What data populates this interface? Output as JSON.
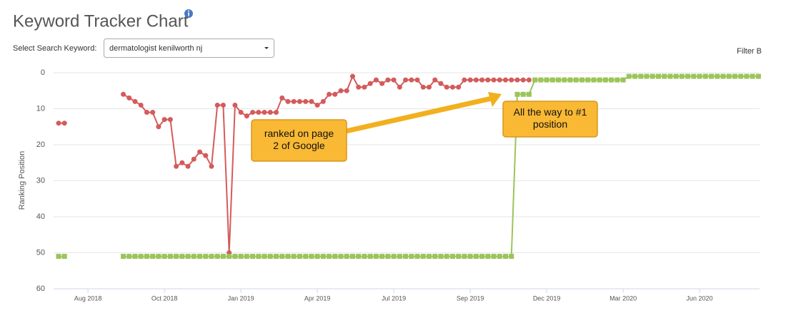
{
  "header": {
    "title": "Keyword Tracker Chart"
  },
  "controls": {
    "select_label": "Select Search Keyword:",
    "select_value": "dermatologist kenilworth nj",
    "filter": "Filter B"
  },
  "chart_data": {
    "type": "line",
    "y_label": "Ranking Position",
    "ylim": [
      0,
      60
    ],
    "yticks": [
      0,
      10,
      20,
      30,
      40,
      50,
      60
    ],
    "y_reversed": true,
    "grid": true,
    "categories": [
      null,
      null,
      null,
      null,
      null,
      "Aug 2018",
      null,
      null,
      null,
      null,
      null,
      null,
      null,
      null,
      null,
      null,
      null,
      null,
      "Oct 2018",
      null,
      null,
      null,
      null,
      null,
      null,
      null,
      null,
      null,
      null,
      null,
      null,
      "Jan 2019",
      null,
      null,
      null,
      null,
      null,
      null,
      null,
      null,
      null,
      null,
      null,
      null,
      "Apr 2019",
      null,
      null,
      null,
      null,
      null,
      null,
      null,
      null,
      null,
      null,
      null,
      null,
      "Jul 2019",
      null,
      null,
      null,
      null,
      null,
      null,
      null,
      null,
      null,
      null,
      null,
      null,
      "Sep 2019",
      null,
      null,
      null,
      null,
      null,
      null,
      null,
      null,
      null,
      null,
      null,
      null,
      "Dec 2019",
      null,
      null,
      null,
      null,
      null,
      null,
      null,
      null,
      null,
      null,
      null,
      null,
      "Mar 2020",
      null,
      null,
      null,
      null,
      null,
      null,
      null,
      null,
      null,
      null,
      null,
      null,
      "Jun 2020",
      null,
      null,
      null,
      null,
      null,
      null,
      null,
      null,
      null,
      null
    ],
    "series": [
      {
        "color": "#d45b5b",
        "marker": "circle",
        "values": [
          14,
          14,
          null,
          null,
          null,
          null,
          null,
          null,
          null,
          null,
          null,
          6,
          7,
          8,
          9,
          11,
          11,
          15,
          13,
          13,
          26,
          25,
          26,
          24,
          22,
          23,
          26,
          9,
          9,
          50,
          9,
          11,
          12,
          11,
          11,
          11,
          11,
          11,
          7,
          8,
          8,
          8,
          8,
          8,
          9,
          8,
          6,
          6,
          5,
          5,
          1,
          4,
          4,
          3,
          2,
          3,
          2,
          2,
          4,
          2,
          2,
          2,
          4,
          4,
          2,
          3,
          4,
          4,
          4,
          2,
          2,
          2,
          2,
          2,
          2,
          2,
          2,
          2,
          2,
          2,
          2,
          null,
          null,
          null,
          null,
          null,
          null,
          null,
          null,
          null,
          null,
          null,
          null,
          null,
          null,
          null,
          null,
          null,
          null,
          null,
          null,
          null,
          null,
          null,
          null,
          null,
          null,
          null,
          null,
          null,
          null,
          null,
          null,
          null,
          null,
          null,
          null,
          null,
          null,
          null
        ]
      },
      {
        "color": "#9cc45a",
        "marker": "square",
        "values": [
          51,
          51,
          null,
          null,
          null,
          null,
          null,
          null,
          null,
          null,
          null,
          51,
          51,
          51,
          51,
          51,
          51,
          51,
          51,
          51,
          51,
          51,
          51,
          51,
          51,
          51,
          51,
          51,
          51,
          51,
          51,
          51,
          51,
          51,
          51,
          51,
          51,
          51,
          51,
          51,
          51,
          51,
          51,
          51,
          51,
          51,
          51,
          51,
          51,
          51,
          51,
          51,
          51,
          51,
          51,
          51,
          51,
          51,
          51,
          51,
          51,
          51,
          51,
          51,
          51,
          51,
          51,
          51,
          51,
          51,
          51,
          51,
          51,
          51,
          51,
          51,
          51,
          51,
          6,
          6,
          6,
          2,
          2,
          2,
          2,
          2,
          2,
          2,
          2,
          2,
          2,
          2,
          2,
          2,
          2,
          2,
          2,
          1,
          1,
          1,
          1,
          1,
          1,
          1,
          1,
          1,
          1,
          1,
          1,
          1,
          1,
          1,
          1,
          1,
          1,
          1,
          1,
          1,
          1,
          1
        ]
      }
    ],
    "annotations": [
      {
        "lines": [
          "ranked on page",
          "2 of Google"
        ]
      },
      {
        "lines": [
          "All the way to #1",
          "position"
        ]
      }
    ]
  }
}
